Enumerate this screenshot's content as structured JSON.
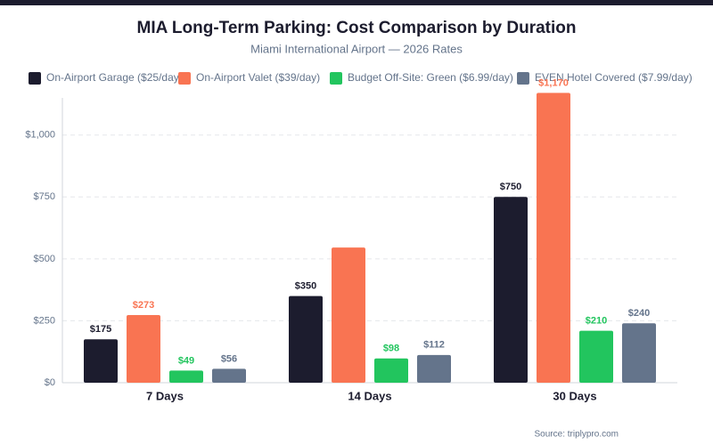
{
  "chart_data": {
    "type": "bar",
    "title": "MIA Long-Term Parking: Cost Comparison by Duration",
    "subtitle": "Miami International Airport — 2026 Rates",
    "source": "Source: triplypro.com",
    "categories": [
      "7 Days",
      "14 Days",
      "30 Days"
    ],
    "series": [
      {
        "name": "On-Airport Garage ($25/day)",
        "color": "#1c1c2e",
        "values": [
          175,
          350,
          750
        ],
        "value_labels": [
          "$175",
          "$350",
          "$750"
        ]
      },
      {
        "name": "On-Airport Valet ($39/day)",
        "color": "#f97452",
        "values": [
          273,
          546,
          1170
        ],
        "value_labels": [
          "$273",
          null,
          "$1,170"
        ]
      },
      {
        "name": "Budget Off-Site: Green ($6.99/day)",
        "color": "#22c55e",
        "values": [
          49,
          98,
          210
        ],
        "value_labels": [
          "$49",
          "$98",
          "$210"
        ]
      },
      {
        "name": "EVEN Hotel Covered ($7.99/day)",
        "color": "#64748b",
        "values": [
          56,
          112,
          240
        ],
        "value_labels": [
          "$56",
          "$112",
          "$240"
        ]
      }
    ],
    "ylim": [
      0,
      1150
    ],
    "yticks": [
      {
        "value": 0,
        "label": "$0"
      },
      {
        "value": 250,
        "label": "$250"
      },
      {
        "value": 500,
        "label": "$500"
      },
      {
        "value": 750,
        "label": "$750"
      },
      {
        "value": 1000,
        "label": "$1,000"
      }
    ],
    "grid": true,
    "legend": "top"
  }
}
